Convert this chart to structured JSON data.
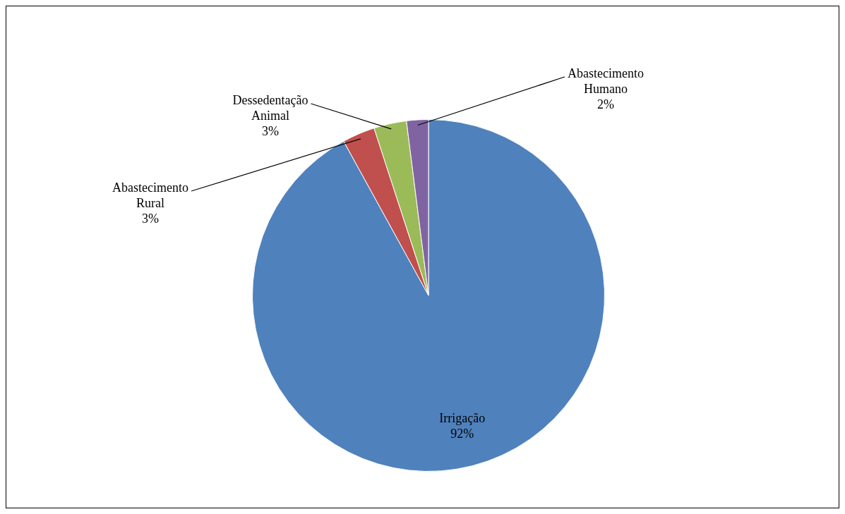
{
  "chart_data": {
    "type": "pie",
    "categories": [
      "Irrigação",
      "Abastecimento Rural",
      "Dessedentação Animal",
      "Abastecimento Humano"
    ],
    "values": [
      92,
      3,
      3,
      2
    ],
    "colors": [
      "#4f81bd",
      "#c0504d",
      "#9bbb59",
      "#8064a2"
    ],
    "value_labels": [
      "92%",
      "3%",
      "3%",
      "2%"
    ],
    "legend": false
  }
}
